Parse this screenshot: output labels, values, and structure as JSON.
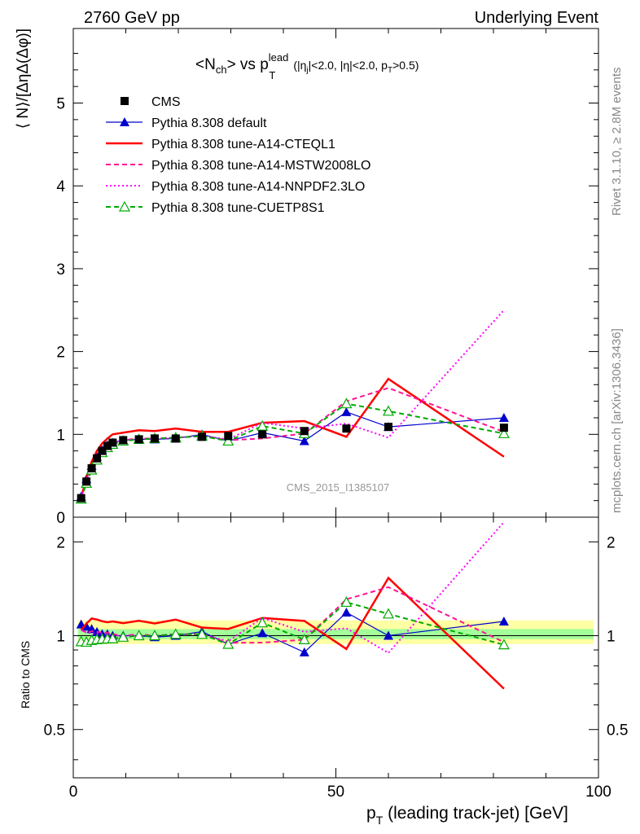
{
  "header": {
    "left": "2760 GeV pp",
    "right": "Underlying Event"
  },
  "plot_title": {
    "main": "<N",
    "main_sub": "ch",
    "vs": "> vs p",
    "vs_sup": "lead",
    "vs_sub": "T",
    "cuts": "(|η",
    "cuts_sub": "j",
    "cuts2": "|<2.0, |η|<2.0, p",
    "cuts2_sub": "T",
    "cuts3": ">0.5)"
  },
  "side_labels": {
    "rivet": "Rivet 3.1.10, ≥ 2.8M events",
    "mcplots": "mcplots.cern.ch [arXiv:1306.3436]"
  },
  "watermark": "CMS_2015_I1385107",
  "axes": {
    "ylabel_top": "⟨ N⟩/[ΔηΔ(Δφ)]",
    "ylabel_bottom": "Ratio to CMS",
    "xlabel_main": "p",
    "xlabel_sub": "T",
    "xlabel_rest": " (leading track-jet) [GeV]",
    "x_ticks": [
      "0",
      "50",
      "100"
    ],
    "top_y_ticks": [
      "0",
      "1",
      "2",
      "3",
      "4",
      "5"
    ],
    "bottom_y_ticks": [
      "0.5",
      "1",
      "2"
    ]
  },
  "legend": [
    {
      "label": "CMS",
      "marker": "square",
      "color": "#000000",
      "dash": "none"
    },
    {
      "label": "Pythia 8.308 default",
      "marker": "triangle",
      "color": "#0000cc",
      "dash": "solid-thin"
    },
    {
      "label": "Pythia 8.308 tune-A14-CTEQL1",
      "marker": "none",
      "color": "#ff0000",
      "dash": "solid-thick"
    },
    {
      "label": "Pythia 8.308 tune-A14-MSTW2008LO",
      "marker": "none",
      "color": "#ff1493",
      "dash": "dashed"
    },
    {
      "label": "Pythia 8.308 tune-A14-NNPDF2.3LO",
      "marker": "none",
      "color": "#ff00ff",
      "dash": "dotted"
    },
    {
      "label": "Pythia 8.308 tune-CUETP8S1",
      "marker": "open-triangle",
      "color": "#00aa00",
      "dash": "dashed"
    }
  ],
  "chart_data": {
    "type": "line",
    "xlim": [
      0,
      100
    ],
    "ylim_top": [
      0,
      5.9
    ],
    "ylim_ratio_log": [
      0.35,
      2.4
    ],
    "x": [
      1.5,
      2.5,
      3.5,
      4.5,
      5.5,
      6.5,
      7.5,
      9.5,
      12.5,
      15.5,
      19.5,
      24.5,
      29.5,
      36,
      44,
      52,
      60,
      82
    ],
    "cms": [
      0.23,
      0.43,
      0.59,
      0.71,
      0.8,
      0.86,
      0.9,
      0.93,
      0.94,
      0.95,
      0.95,
      0.97,
      0.98,
      1.0,
      1.04,
      1.07,
      1.09,
      1.08
    ],
    "series": [
      {
        "name": "Pythia 8.308 default",
        "values": [
          0.25,
          0.46,
          0.62,
          0.73,
          0.81,
          0.87,
          0.9,
          0.93,
          0.94,
          0.94,
          0.95,
          1.0,
          0.92,
          1.02,
          0.92,
          1.27,
          1.09,
          1.2
        ]
      },
      {
        "name": "Pythia 8.308 tune-A14-CTEQL1",
        "values": [
          0.24,
          0.47,
          0.67,
          0.8,
          0.89,
          0.95,
          1.0,
          1.02,
          1.05,
          1.04,
          1.07,
          1.03,
          1.03,
          1.14,
          1.16,
          0.97,
          1.67,
          0.73
        ]
      },
      {
        "name": "Pythia 8.308 tune-A14-MSTW2008LO",
        "values": [
          0.24,
          0.44,
          0.61,
          0.73,
          0.82,
          0.88,
          0.91,
          0.93,
          0.95,
          0.95,
          0.96,
          0.98,
          0.93,
          0.95,
          1.01,
          1.4,
          1.56,
          1.03
        ]
      },
      {
        "name": "Pythia 8.308 tune-A14-NNPDF2.3LO",
        "values": [
          0.24,
          0.44,
          0.6,
          0.72,
          0.81,
          0.87,
          0.9,
          0.93,
          0.94,
          0.95,
          0.96,
          0.98,
          0.94,
          1.14,
          1.07,
          1.13,
          0.96,
          2.5
        ]
      },
      {
        "name": "Pythia 8.308 tune-CUETP8S1",
        "values": [
          0.22,
          0.41,
          0.57,
          0.69,
          0.78,
          0.84,
          0.88,
          0.92,
          0.94,
          0.95,
          0.96,
          0.98,
          0.92,
          1.1,
          1.01,
          1.37,
          1.28,
          1.01
        ]
      }
    ]
  }
}
